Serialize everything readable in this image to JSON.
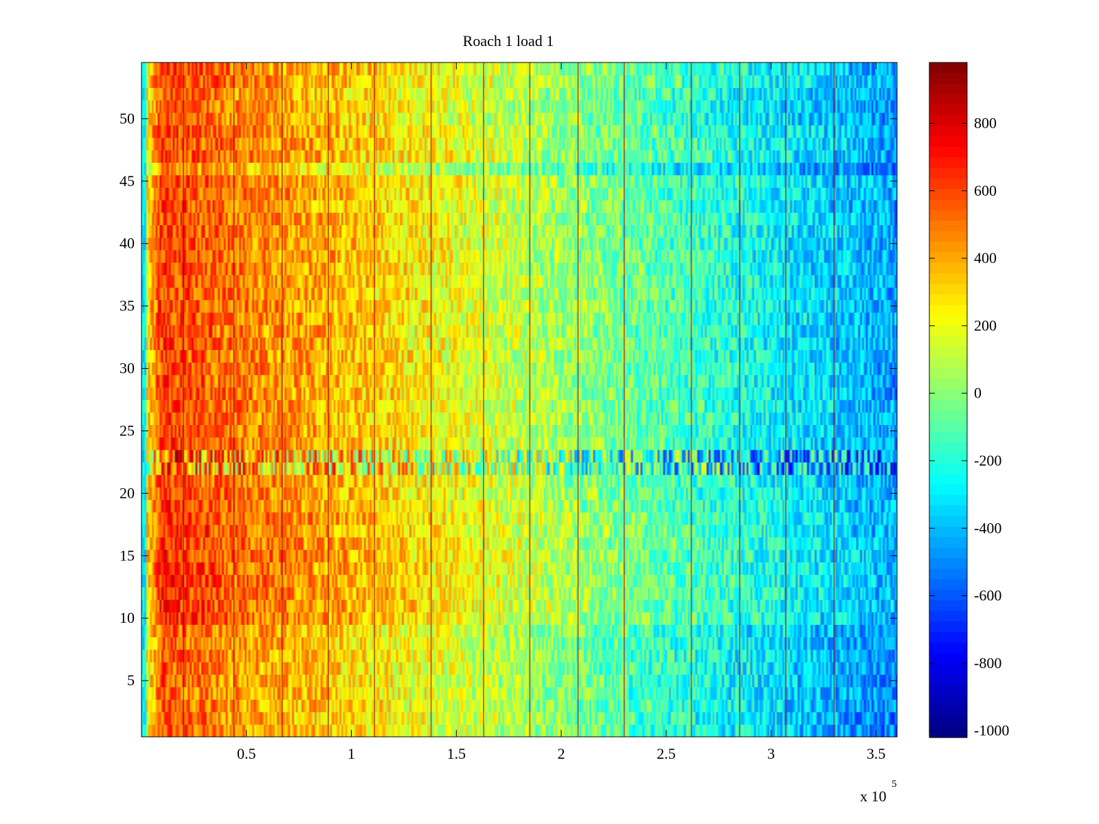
{
  "chart_data": {
    "type": "heatmap",
    "title": "Roach 1 load 1",
    "xlabel": "",
    "ylabel": "",
    "x_multiplier_base": "x 10",
    "x_multiplier_exponent": "5",
    "xlim": [
      0,
      360000
    ],
    "ylim": [
      0.5,
      54.5
    ],
    "x_ticks": [
      50000,
      100000,
      150000,
      200000,
      250000,
      300000,
      350000
    ],
    "x_tick_labels": [
      "0.5",
      "1",
      "1.5",
      "2",
      "2.5",
      "3",
      "3.5"
    ],
    "y_ticks": [
      5,
      10,
      15,
      20,
      25,
      30,
      35,
      40,
      45,
      50
    ],
    "y_tick_labels": [
      "5",
      "10",
      "15",
      "20",
      "25",
      "30",
      "35",
      "40",
      "45",
      "50"
    ],
    "rows": 54,
    "colorbar": {
      "colormap": "jet",
      "clim": [
        -1020,
        980
      ],
      "ticks": [
        800,
        600,
        400,
        200,
        0,
        -200,
        -400,
        -600,
        -800,
        -1000
      ],
      "tick_labels": [
        "800",
        "600",
        "400",
        "200",
        "0",
        "-200",
        "-400",
        "-600",
        "-800",
        "-1000"
      ]
    },
    "trend": {
      "x": [
        0,
        2000,
        10000,
        50000,
        100000,
        150000,
        200000,
        250000,
        300000,
        350000,
        360000
      ],
      "value": [
        -250,
        200,
        620,
        480,
        350,
        200,
        40,
        -120,
        -260,
        -420,
        -450
      ]
    },
    "row_offsets": [
      {
        "rows": [
          1,
          2,
          3,
          4,
          5,
          6,
          7,
          8,
          9
        ],
        "offset": -60
      },
      {
        "rows": [
          10,
          11,
          12,
          13,
          14,
          15,
          16,
          17,
          18
        ],
        "offset": 40
      },
      {
        "rows": [
          22,
          23
        ],
        "offset": -80,
        "note": "striped band"
      },
      {
        "rows": [
          46
        ],
        "offset": -150
      },
      {
        "rows": [
          50,
          51,
          52
        ],
        "offset": -40
      }
    ],
    "vertical_streaks_x": [
      20000,
      44000,
      67000,
      89000,
      111000,
      138000,
      163000,
      185000,
      208000,
      230000,
      262000,
      285000,
      307000,
      330000
    ]
  }
}
